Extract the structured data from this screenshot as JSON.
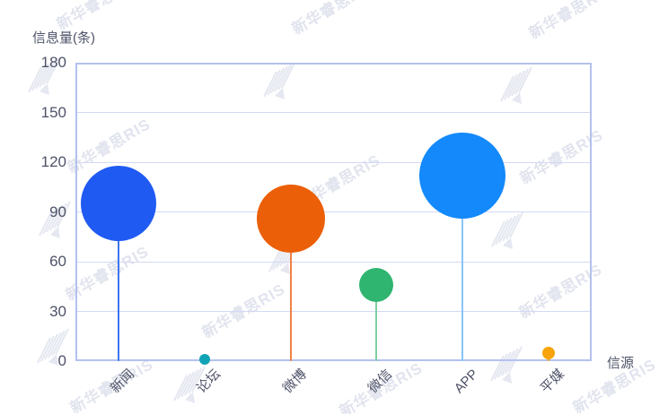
{
  "watermark": {
    "text": "新华睿思RIS"
  },
  "chart_data": {
    "type": "scatter",
    "variant": "bubble-lollipop",
    "title": "",
    "ylabel": "信息量(条)",
    "xlabel": "信源",
    "categories": [
      "新闻",
      "论坛",
      "微博",
      "微信",
      "APP",
      "平媒"
    ],
    "values": [
      95,
      1,
      86,
      46,
      112,
      5
    ],
    "bubble_radius_px": [
      42,
      6,
      38,
      19,
      48,
      7
    ],
    "colors": [
      "#1F5AF2",
      "#10A3B5",
      "#EB5F08",
      "#2FB570",
      "#1389FB",
      "#F6A40A"
    ],
    "stem_colors": [
      "#3E74F0",
      "#10A3B5",
      "#F08145",
      "#7CCFA4",
      "#8AC4F9",
      "#F6A40A"
    ],
    "ylim": [
      0,
      180
    ],
    "yticks": [
      0,
      30,
      60,
      90,
      120,
      150,
      180
    ],
    "grid": "horizontal",
    "legend": "none"
  }
}
